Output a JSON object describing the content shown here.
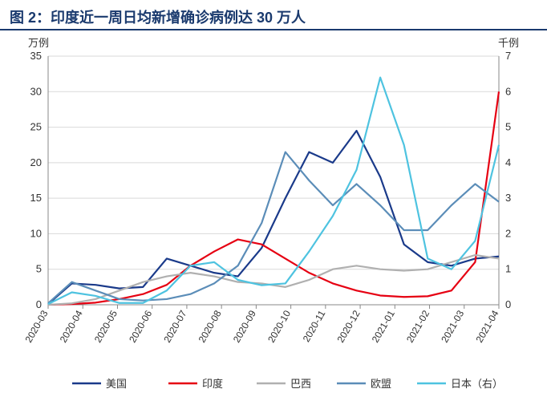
{
  "title": "图 2：印度近一周日均新增确诊病例达 30 万人",
  "chart": {
    "type": "line",
    "y_left": {
      "label": "万例",
      "min": 0,
      "max": 35,
      "step": 5
    },
    "y_right": {
      "label": "千例",
      "min": 0,
      "max": 7,
      "step": 1
    },
    "x_categories": [
      "2020-03",
      "2020-04",
      "2020-05",
      "2020-06",
      "2020-07",
      "2020-08",
      "2020-09",
      "2020-10",
      "2020-11",
      "2020-12",
      "2021-01",
      "2021-02",
      "2021-03",
      "2021-04"
    ],
    "grid_color": "#d9d9d9",
    "axis_color": "#888888",
    "background": "#ffffff",
    "series": [
      {
        "name": "美国",
        "color": "#1a3a8a",
        "width": 2.2,
        "axis": "left",
        "data": [
          0.1,
          3.0,
          2.8,
          2.3,
          2.5,
          6.5,
          5.5,
          4.5,
          4.0,
          8.0,
          15.0,
          21.5,
          20.0,
          24.5,
          18.0,
          8.5,
          6.0,
          5.5,
          6.5,
          6.8
        ]
      },
      {
        "name": "印度",
        "color": "#e60012",
        "width": 2.2,
        "axis": "left",
        "data": [
          0.0,
          0.1,
          0.3,
          0.8,
          1.5,
          2.8,
          5.5,
          7.5,
          9.2,
          8.5,
          6.5,
          4.5,
          3.0,
          2.0,
          1.3,
          1.1,
          1.2,
          2.0,
          6.0,
          30.0
        ]
      },
      {
        "name": "巴西",
        "color": "#b0b0b0",
        "width": 2.2,
        "axis": "left",
        "data": [
          0.0,
          0.2,
          0.8,
          2.0,
          3.2,
          4.0,
          4.5,
          4.0,
          3.2,
          3.0,
          2.5,
          3.5,
          5.0,
          5.5,
          5.0,
          4.8,
          5.0,
          6.0,
          7.0,
          6.5
        ]
      },
      {
        "name": "欧盟",
        "color": "#5b8db8",
        "width": 2.2,
        "axis": "left",
        "data": [
          0.2,
          3.2,
          2.0,
          0.8,
          0.6,
          0.8,
          1.5,
          3.0,
          5.5,
          11.5,
          21.5,
          17.5,
          14.0,
          17.0,
          14.0,
          10.5,
          10.5,
          14.0,
          17.0,
          14.5
        ]
      },
      {
        "name": "日本（右）",
        "color": "#4ec3e0",
        "width": 2.2,
        "axis": "right",
        "data": [
          0.02,
          0.35,
          0.25,
          0.05,
          0.05,
          0.4,
          1.1,
          1.2,
          0.7,
          0.55,
          0.6,
          1.5,
          2.5,
          3.8,
          6.4,
          4.5,
          1.3,
          1.0,
          1.8,
          4.5
        ]
      }
    ]
  }
}
